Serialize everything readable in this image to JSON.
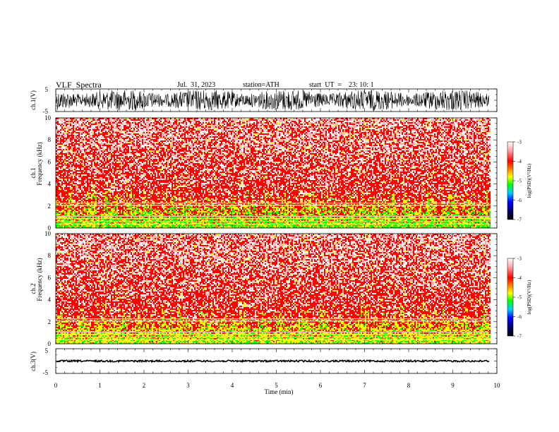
{
  "header": {
    "title": "VLF  Spectra",
    "date": "Jul.  31, 2023",
    "station": "station=ATH",
    "start": "start  UT  =    23: 10: 1"
  },
  "chart_data": [
    {
      "type": "line",
      "name": "ch1-waveform",
      "ylabel": "ch.1(V)",
      "ylim": [
        -5,
        5
      ],
      "yticks": [
        "5",
        "-5"
      ],
      "xlim": [
        0,
        10
      ]
    },
    {
      "type": "heatmap",
      "name": "ch1-spectrogram",
      "ylabel_top": "ch.1",
      "ylabel": "Frequency  (kHz)",
      "ylim": [
        0,
        10
      ],
      "yticks": [
        "0",
        "2",
        "4",
        "6",
        "8",
        "10"
      ],
      "xlim": [
        0,
        10
      ],
      "data_end_min": 9.83,
      "colorbar": {
        "label": "log(PSD)(V²/Hz)",
        "range": [
          -7,
          -3
        ],
        "ticks": [
          "-3",
          "-4",
          "-5",
          "-6",
          "-7"
        ]
      }
    },
    {
      "type": "heatmap",
      "name": "ch2-spectrogram",
      "ylabel_top": "ch.2",
      "ylabel": "Frequency  (kHz)",
      "ylim": [
        0,
        10
      ],
      "yticks": [
        "0",
        "2",
        "4",
        "6",
        "8",
        "10"
      ],
      "xlim": [
        0,
        10
      ],
      "data_end_min": 9.83,
      "colorbar": {
        "label": "log(PSD)(V²/Hz)",
        "range": [
          -7,
          -3
        ],
        "ticks": [
          "-3",
          "-4",
          "-5",
          "-6",
          "-7"
        ]
      }
    },
    {
      "type": "line",
      "name": "ch3-waveform",
      "ylabel": "ch.3(V)",
      "ylim": [
        -5,
        5
      ],
      "yticks": [
        "5",
        "-5"
      ],
      "xlim": [
        0,
        10
      ],
      "xlabel": "Time  (min)",
      "xticks": [
        "0",
        "1",
        "2",
        "3",
        "4",
        "5",
        "6",
        "7",
        "8",
        "9",
        "10"
      ]
    }
  ],
  "colors": {
    "waveform": "#000000",
    "psd_high": "#ff0000",
    "psd_mid": "#ffff00",
    "psd_low": "#00ff00"
  }
}
